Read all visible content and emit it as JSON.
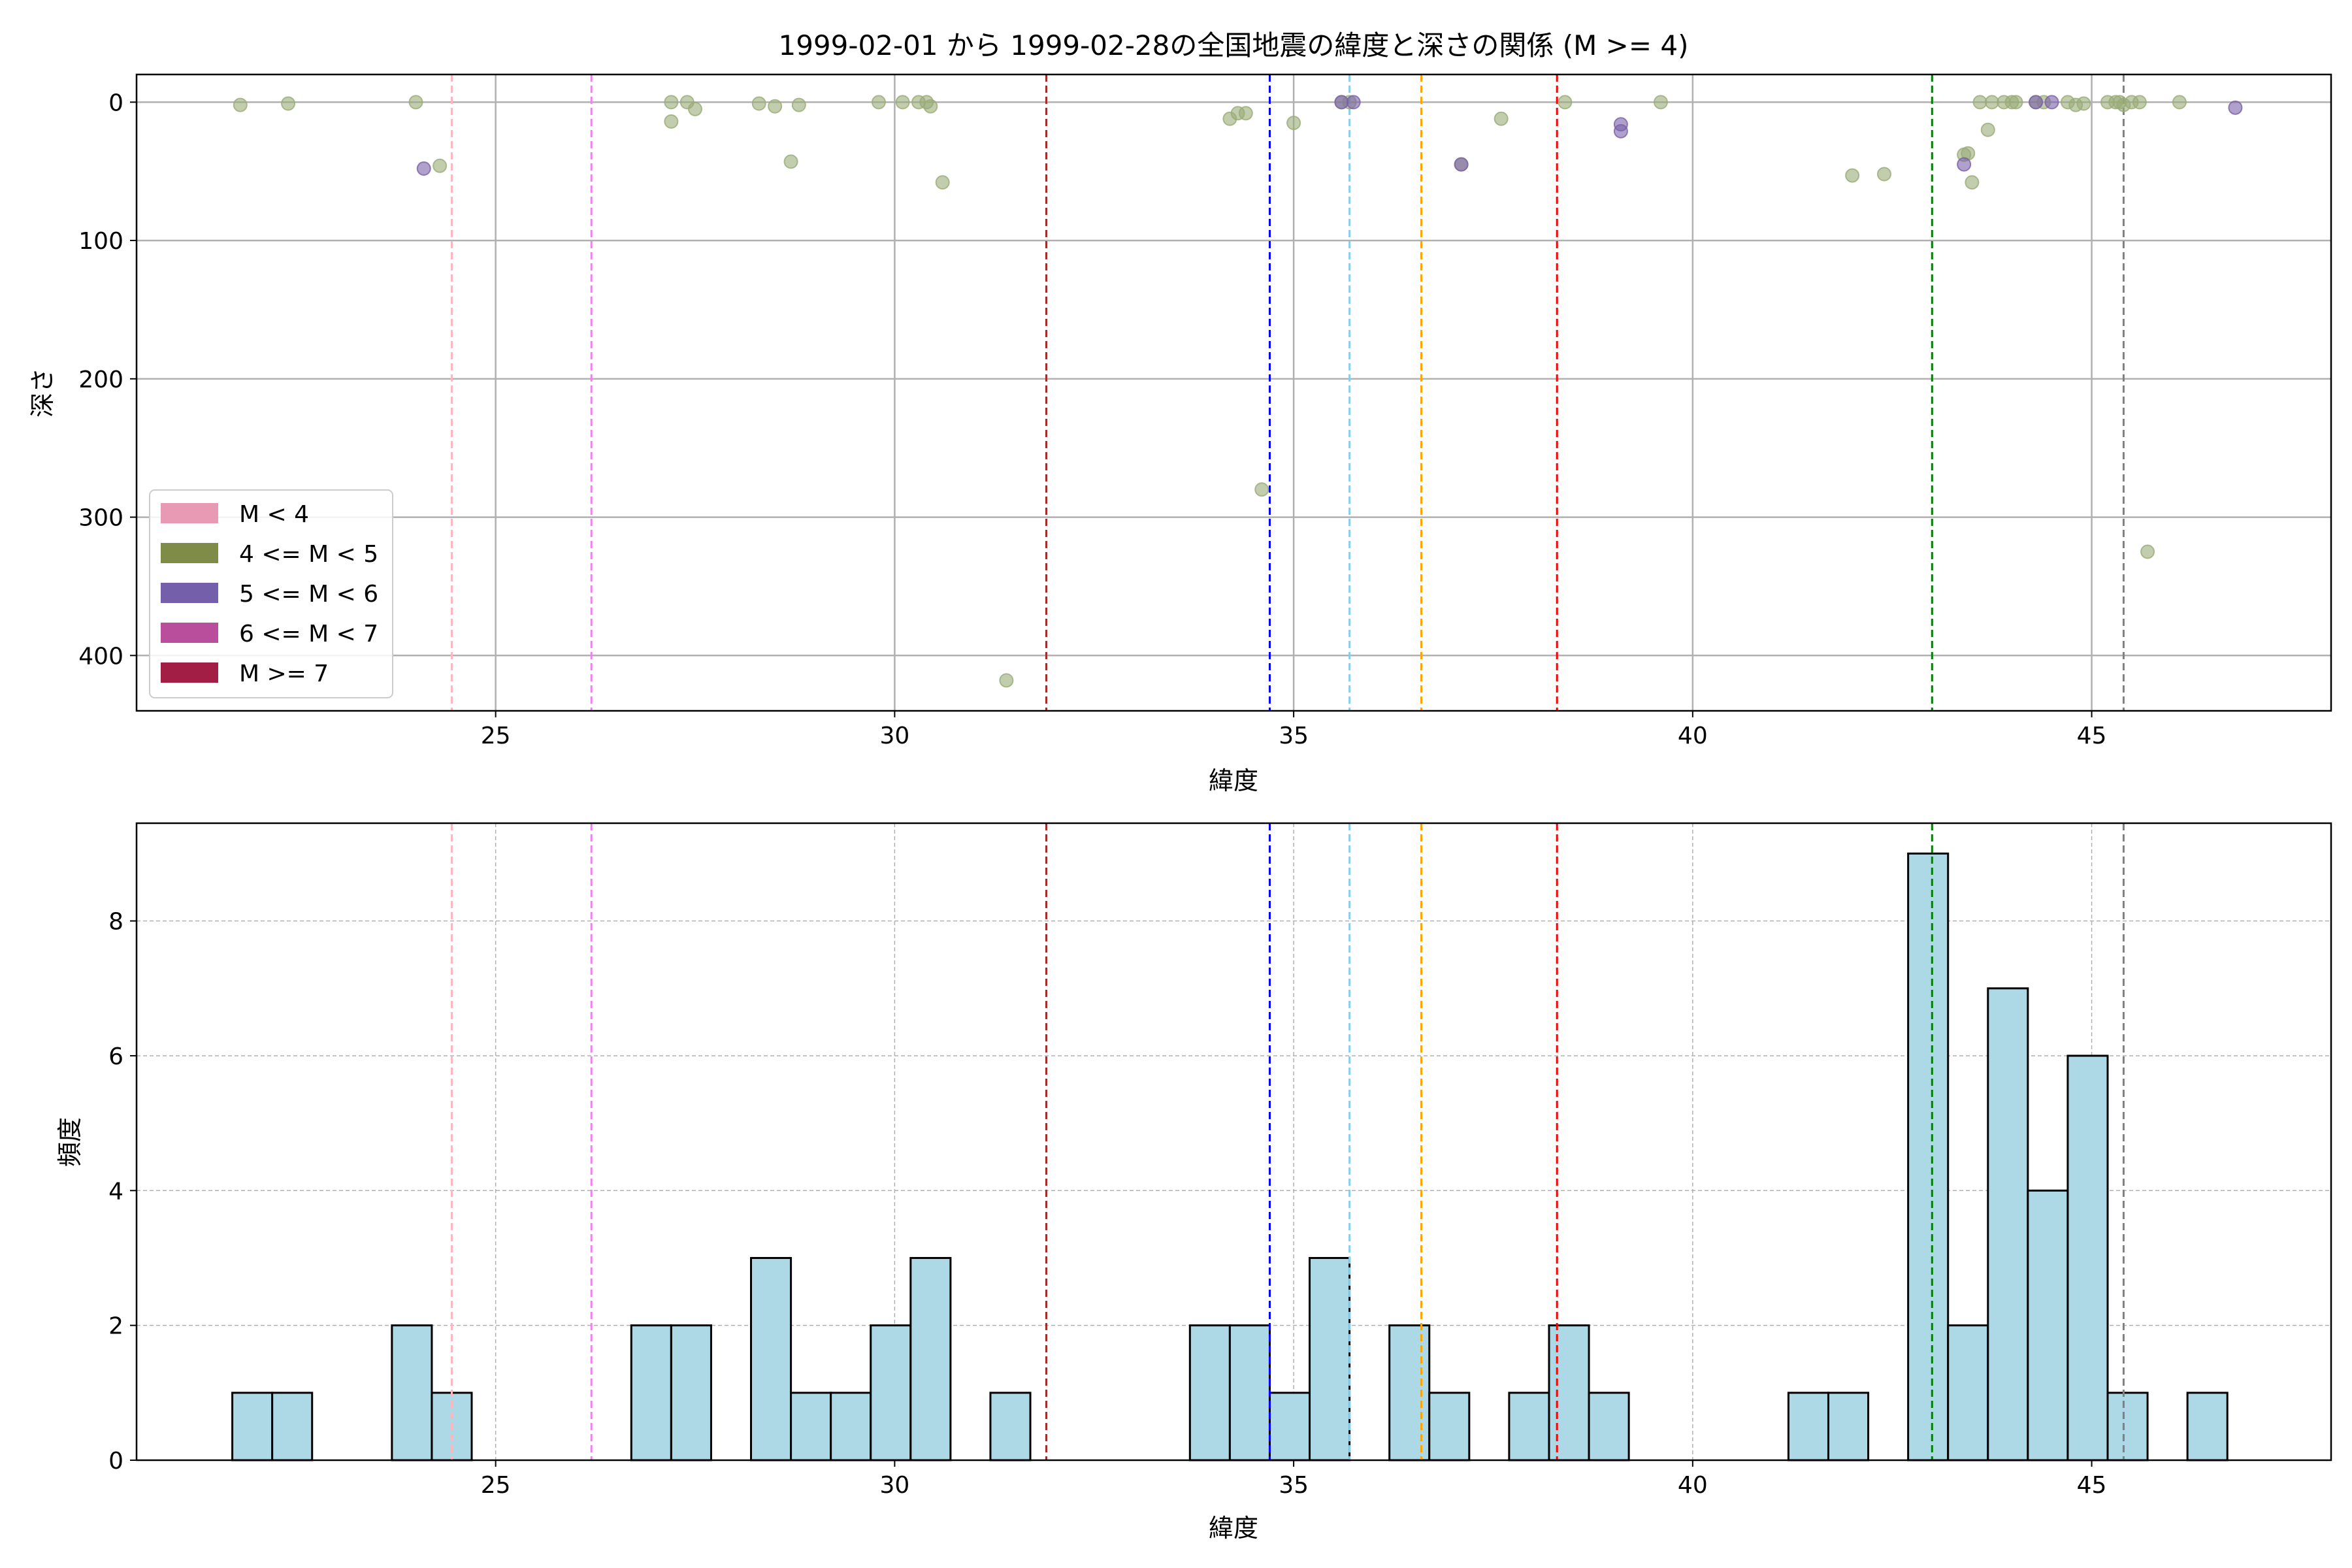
{
  "figure_title": "1999-02-01 から 1999-02-28の全国地震の緯度と深さの関係 (M >= 4)",
  "colors": {
    "scatter_m4_5": "#9aab78",
    "scatter_m5_6": "#7a60aa",
    "hist_fill": "#add8e6",
    "hist_edge": "#000000",
    "grid": "#b0b0b0"
  },
  "chart_data": [
    {
      "type": "scatter",
      "title": "1999-02-01 から 1999-02-28の全国地震の緯度と深さの関係 (M >= 4)",
      "xlabel": "緯度",
      "ylabel": "深さ",
      "xlim": [
        20.5,
        48
      ],
      "ylim": [
        440,
        -20
      ],
      "y_inverted": true,
      "xticks": [
        25,
        30,
        35,
        40,
        45
      ],
      "yticks": [
        0,
        100,
        200,
        300,
        400
      ],
      "grid": "on",
      "legend_position": "lower-left",
      "legend": [
        {
          "label": "M < 4",
          "color": "#e899b4"
        },
        {
          "label": "4 <= M < 5",
          "color": "#7f8c48"
        },
        {
          "label": "5 <= M < 6",
          "color": "#7460aa"
        },
        {
          "label": "6 <= M < 7",
          "color": "#b84e9c"
        },
        {
          "label": "M >= 7",
          "color": "#a31e44"
        }
      ],
      "series": [
        {
          "name": "4 <= M < 5",
          "points": [
            [
              21.8,
              2
            ],
            [
              22.4,
              1
            ],
            [
              24.0,
              0
            ],
            [
              24.3,
              46
            ],
            [
              27.2,
              0
            ],
            [
              27.2,
              14
            ],
            [
              27.4,
              0
            ],
            [
              27.5,
              5
            ],
            [
              28.3,
              1
            ],
            [
              28.5,
              3
            ],
            [
              28.7,
              43
            ],
            [
              28.8,
              2
            ],
            [
              29.8,
              0
            ],
            [
              30.1,
              0
            ],
            [
              30.3,
              0
            ],
            [
              30.4,
              0
            ],
            [
              30.45,
              3
            ],
            [
              30.6,
              58
            ],
            [
              31.4,
              418
            ],
            [
              34.2,
              12
            ],
            [
              34.3,
              8
            ],
            [
              34.4,
              8
            ],
            [
              34.6,
              280
            ],
            [
              35.0,
              15
            ],
            [
              35.6,
              0
            ],
            [
              35.7,
              0
            ],
            [
              37.1,
              45
            ],
            [
              37.6,
              12
            ],
            [
              38.4,
              0
            ],
            [
              39.6,
              0
            ],
            [
              42.0,
              53
            ],
            [
              42.4,
              52
            ],
            [
              43.4,
              38
            ],
            [
              43.45,
              37
            ],
            [
              43.5,
              58
            ],
            [
              43.6,
              0
            ],
            [
              43.7,
              20
            ],
            [
              43.75,
              0
            ],
            [
              43.9,
              0
            ],
            [
              44.0,
              0
            ],
            [
              44.05,
              0
            ],
            [
              44.3,
              0
            ],
            [
              44.4,
              0
            ],
            [
              44.7,
              0
            ],
            [
              44.8,
              2
            ],
            [
              44.9,
              1
            ],
            [
              45.2,
              0
            ],
            [
              45.3,
              0
            ],
            [
              45.35,
              0
            ],
            [
              45.4,
              2
            ],
            [
              45.5,
              0
            ],
            [
              45.6,
              0
            ],
            [
              45.7,
              325
            ],
            [
              46.1,
              0
            ]
          ]
        },
        {
          "name": "5 <= M < 6",
          "points": [
            [
              24.1,
              48
            ],
            [
              35.6,
              0
            ],
            [
              35.75,
              0
            ],
            [
              37.1,
              45
            ],
            [
              39.1,
              16
            ],
            [
              39.1,
              21
            ],
            [
              43.4,
              45
            ],
            [
              44.3,
              0
            ],
            [
              44.5,
              0
            ],
            [
              46.8,
              4
            ]
          ]
        }
      ],
      "reference_lines": [
        {
          "x": 24.45,
          "color": "#ffb6c1"
        },
        {
          "x": 26.2,
          "color": "#ee82ee"
        },
        {
          "x": 31.9,
          "color": "#a52a2a"
        },
        {
          "x": 34.7,
          "color": "#0000ff"
        },
        {
          "x": 35.7,
          "color": "#87ceeb"
        },
        {
          "x": 36.6,
          "color": "#ffa500"
        },
        {
          "x": 38.3,
          "color": "#ff0000"
        },
        {
          "x": 43.0,
          "color": "#008000"
        },
        {
          "x": 45.4,
          "color": "#808080"
        }
      ]
    },
    {
      "type": "bar",
      "subtype": "histogram",
      "xlabel": "緯度",
      "ylabel": "頻度",
      "xlim": [
        20.5,
        48
      ],
      "ylim": [
        0,
        9.45
      ],
      "xticks": [
        25,
        30,
        35,
        40,
        45
      ],
      "yticks": [
        0,
        2,
        4,
        6,
        8
      ],
      "grid": "on",
      "bin_start": 21.7,
      "bin_width": 0.5,
      "values": [
        1,
        1,
        0,
        0,
        2,
        1,
        0,
        0,
        0,
        0,
        2,
        2,
        0,
        3,
        1,
        1,
        2,
        3,
        0,
        1,
        0,
        0,
        0,
        0,
        2,
        2,
        1,
        3,
        0,
        2,
        1,
        0,
        1,
        2,
        1,
        0,
        0,
        0,
        0,
        1,
        1,
        0,
        9,
        2,
        7,
        4,
        6,
        1,
        0,
        1
      ],
      "reference_lines": [
        {
          "x": 24.45,
          "color": "#ffb6c1"
        },
        {
          "x": 26.2,
          "color": "#ee82ee"
        },
        {
          "x": 31.9,
          "color": "#a52a2a"
        },
        {
          "x": 34.7,
          "color": "#0000ff"
        },
        {
          "x": 35.7,
          "color": "#87ceeb"
        },
        {
          "x": 36.6,
          "color": "#ffa500"
        },
        {
          "x": 38.3,
          "color": "#ff0000"
        },
        {
          "x": 43.0,
          "color": "#008000"
        },
        {
          "x": 45.4,
          "color": "#808080"
        }
      ]
    }
  ]
}
